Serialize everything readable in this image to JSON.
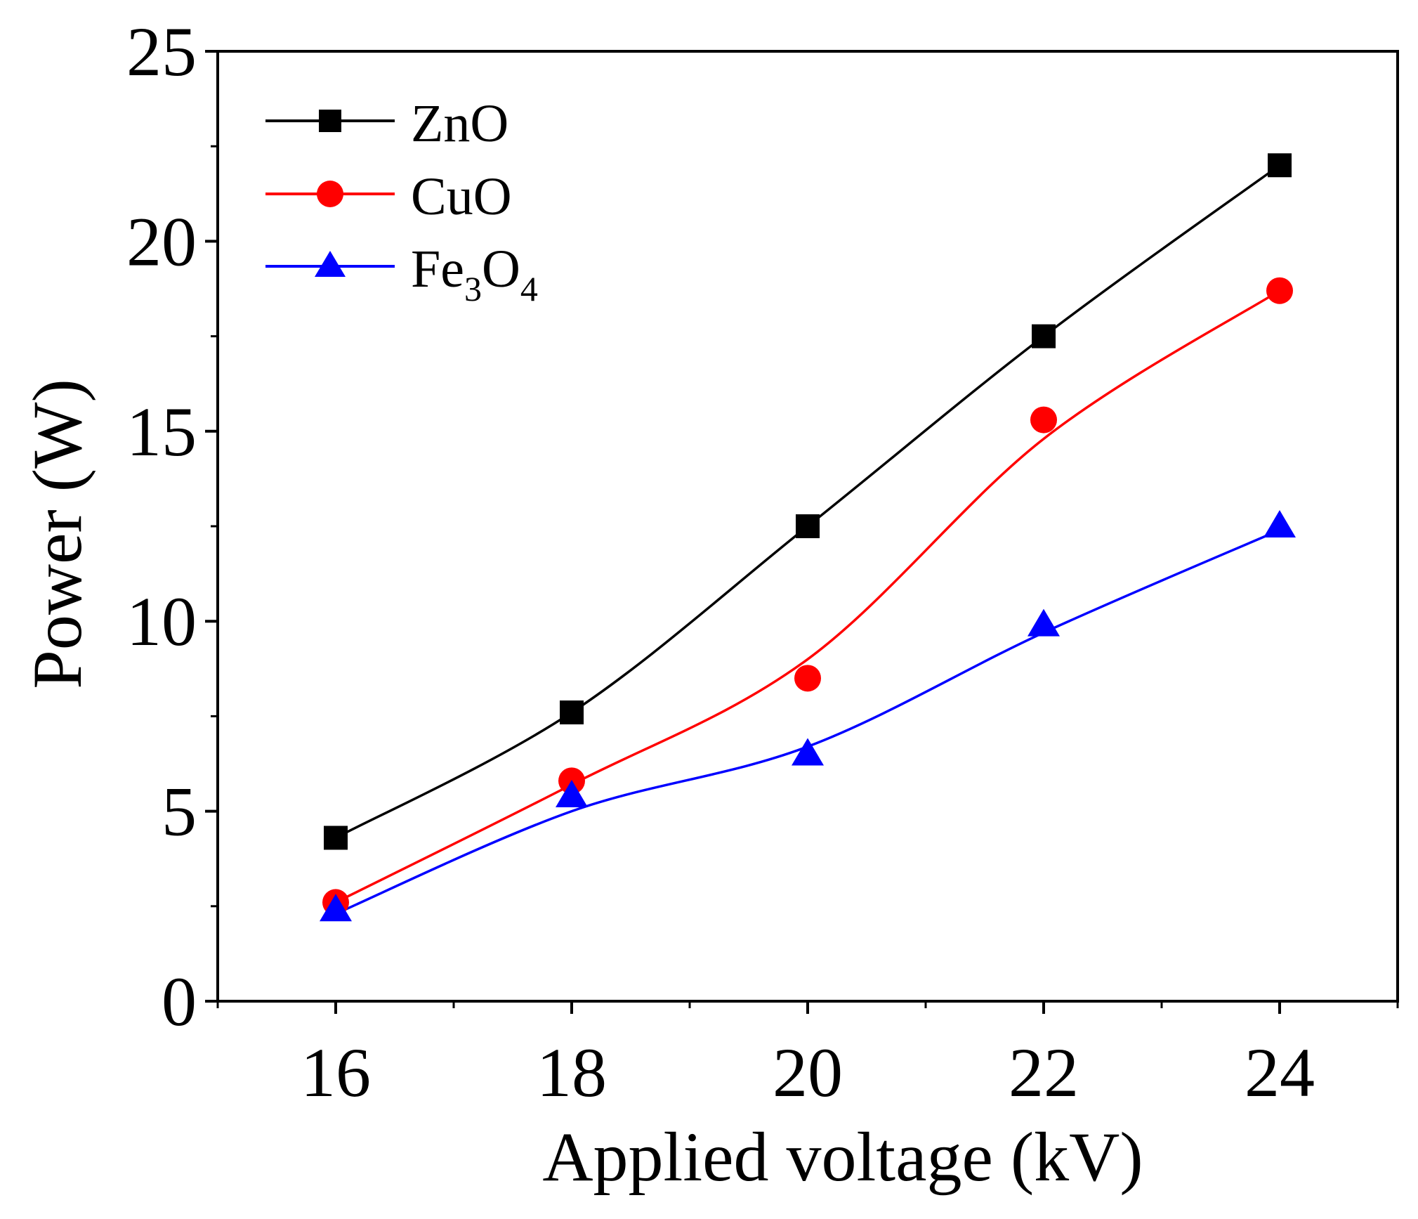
{
  "chart_data": {
    "type": "line",
    "title": "",
    "xlabel": "Applied voltage (kV)",
    "ylabel": "Power (W)",
    "xlim": [
      15,
      25
    ],
    "ylim": [
      0,
      25
    ],
    "x_ticks": [
      16,
      18,
      20,
      22,
      24
    ],
    "x_tick_labels": [
      "16",
      "18",
      "20",
      "22",
      "24"
    ],
    "x_minor_ticks": [
      15,
      17,
      19,
      21,
      23,
      25
    ],
    "y_ticks": [
      0,
      5,
      10,
      15,
      20,
      25
    ],
    "y_tick_labels": [
      "0",
      "5",
      "10",
      "15",
      "20",
      "25"
    ],
    "y_minor_ticks": [
      2.5,
      7.5,
      12.5,
      17.5,
      22.5
    ],
    "grid": false,
    "legend_position": "top-left",
    "series": [
      {
        "name": "ZnO",
        "label_main": "ZnO",
        "color": "#000000",
        "marker": "square",
        "x": [
          16,
          18,
          20,
          22,
          24
        ],
        "values": [
          4.3,
          7.6,
          12.5,
          17.5,
          22.0
        ]
      },
      {
        "name": "CuO",
        "label_main": "CuO",
        "color": "#ff0000",
        "marker": "circle",
        "x": [
          16,
          18,
          20,
          22,
          24
        ],
        "values": [
          2.6,
          5.8,
          8.5,
          15.3,
          18.7
        ],
        "fit_values": [
          2.6,
          5.7,
          9.0,
          14.8,
          18.7
        ]
      },
      {
        "name": "Fe3O4",
        "label_main": "Fe",
        "label_sub1": "3",
        "label_mid": "O",
        "label_sub2": "4",
        "color": "#0000ff",
        "marker": "triangle",
        "x": [
          16,
          18,
          20,
          22,
          24
        ],
        "values": [
          2.4,
          5.4,
          6.5,
          9.9,
          12.5
        ],
        "fit_values": [
          2.3,
          5.0,
          6.7,
          9.7,
          12.4
        ]
      }
    ]
  }
}
